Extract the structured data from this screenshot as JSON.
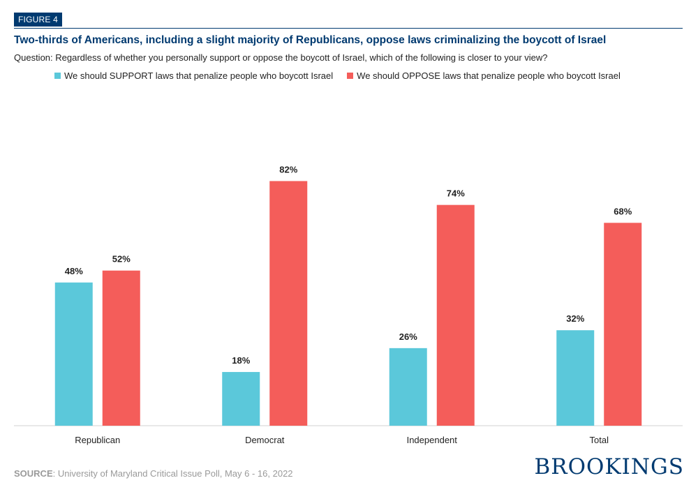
{
  "figure_label": "FIGURE 4",
  "source_label": "SOURCE",
  "source_text": ": University of Maryland Critical Issue Poll, May 6 - 16, 2022",
  "brand": "BROOKINGS",
  "colors": {
    "support": "#5bc8da",
    "oppose": "#f45d5a",
    "navy": "#003a70",
    "axis": "#d0d0d0"
  },
  "chart_data": {
    "type": "bar",
    "title": "Two-thirds of Americans, including a slight majority of Republicans, oppose laws criminalizing the boycott of Israel",
    "subtitle": "Question: Regardless of whether you personally support or oppose the boycott of Israel, which of the following is closer to your view?",
    "categories": [
      "Republican",
      "Democrat",
      "Independent",
      "Total"
    ],
    "series": [
      {
        "name": "We should SUPPORT laws that penalize people who boycott Israel",
        "values": [
          48,
          18,
          26,
          32
        ],
        "color": "#5bc8da"
      },
      {
        "name": "We should OPPOSE laws that penalize people who boycott Israel",
        "values": [
          52,
          82,
          74,
          68
        ],
        "color": "#f45d5a"
      }
    ],
    "value_suffix": "%",
    "ylim": [
      0,
      100
    ],
    "grid": false,
    "legend": "top"
  }
}
